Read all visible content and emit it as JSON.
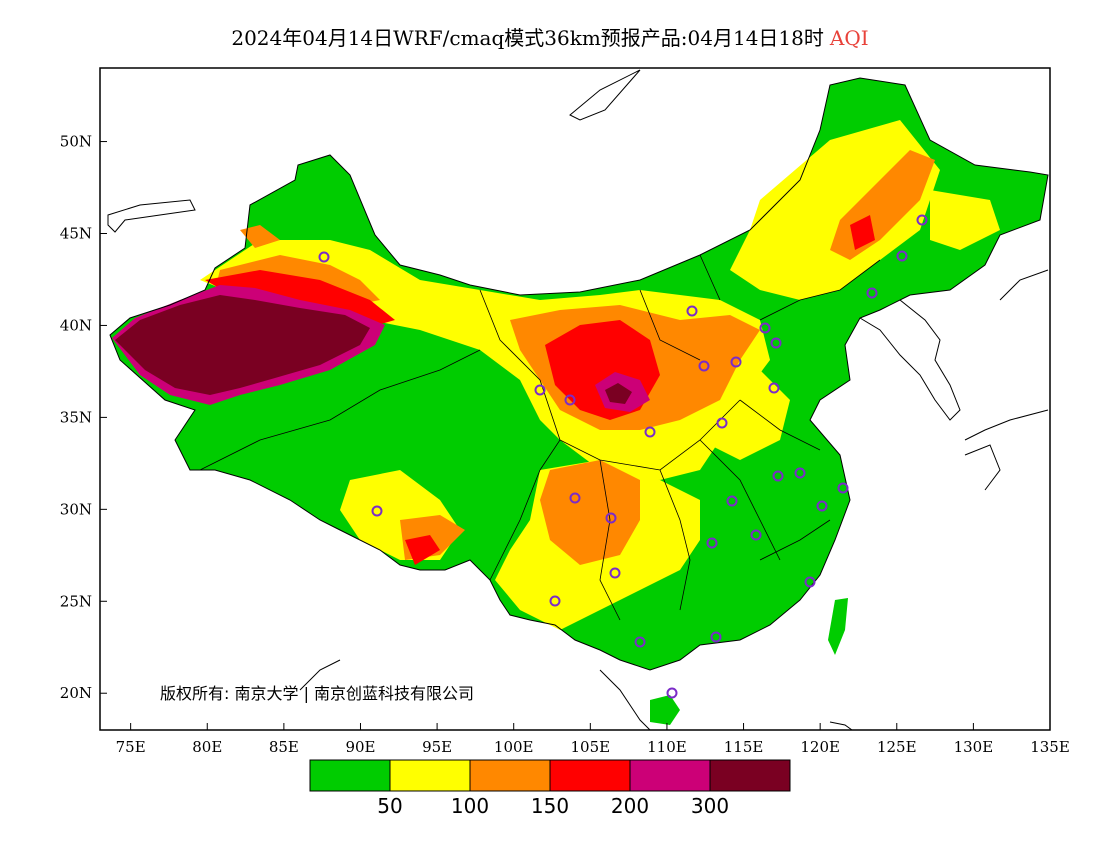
{
  "title": {
    "main": "2024年04月14日WRF/cmaq模式36km预报产品:04月14日18时",
    "variable": "AQI"
  },
  "map": {
    "lon_range": [
      73,
      135
    ],
    "lat_range": [
      18,
      54
    ],
    "lon_ticks": [
      "75E",
      "80E",
      "85E",
      "90E",
      "95E",
      "100E",
      "105E",
      "110E",
      "115E",
      "120E",
      "125E",
      "130E",
      "135E"
    ],
    "lat_ticks": [
      "20N",
      "25N",
      "30N",
      "35N",
      "40N",
      "45N",
      "50N"
    ],
    "copyright": "版权所有: 南京大学 | 南京创蓝科技有限公司"
  },
  "legend": {
    "colors": [
      "#00cc00",
      "#ffff00",
      "#ff8800",
      "#ff0000",
      "#cc0077",
      "#7a0022"
    ],
    "labels": [
      "50",
      "100",
      "150",
      "200",
      "300"
    ]
  },
  "colors": {
    "good": "#00cc00",
    "moderate": "#ffff00",
    "usg": "#ff8800",
    "unhealthy": "#ff0000",
    "very_unhealthy": "#cc0077",
    "hazardous": "#7a0022",
    "station_marker": "#7b2cc8",
    "aqi_label": "#e8423a"
  }
}
